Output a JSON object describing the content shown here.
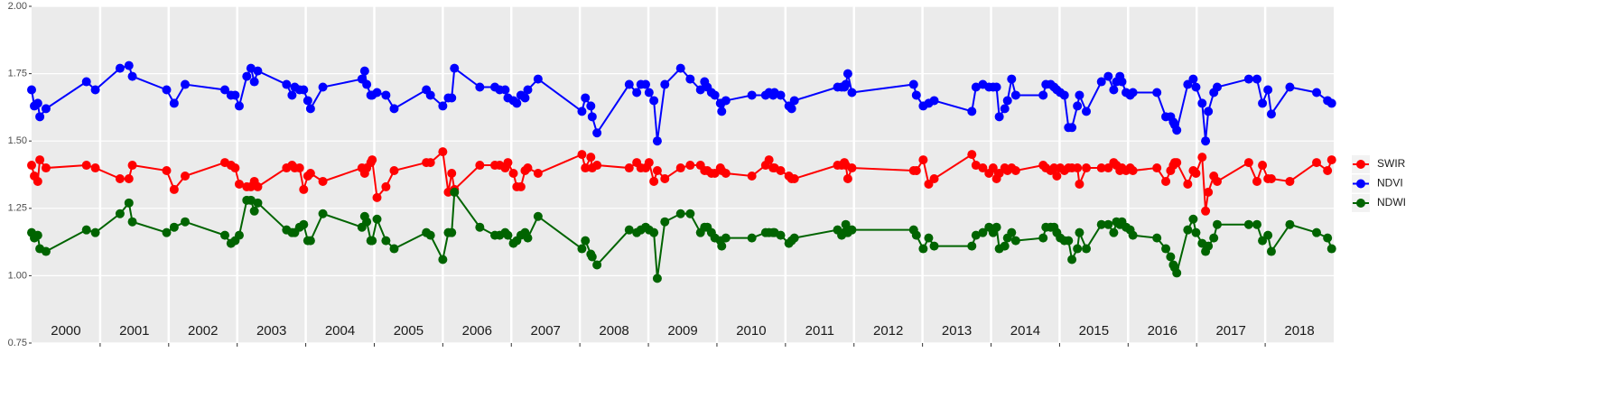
{
  "chart_data": {
    "type": "line",
    "x": [
      2000.0,
      2000.04,
      2000.09,
      2000.12,
      2000.21,
      2000.8,
      2000.93,
      2001.29,
      2001.42,
      2001.47,
      2001.97,
      2002.08,
      2002.24,
      2002.82,
      2002.91,
      2002.97,
      2003.03,
      2003.14,
      2003.2,
      2003.25,
      2003.3,
      2003.72,
      2003.8,
      2003.84,
      2003.91,
      2003.97,
      2004.03,
      2004.07,
      2004.25,
      2004.82,
      2004.86,
      2004.89,
      2004.95,
      2004.97,
      2005.04,
      2005.17,
      2005.29,
      2005.76,
      2005.82,
      2006.0,
      2006.08,
      2006.13,
      2006.17,
      2006.54,
      2006.76,
      2006.83,
      2006.91,
      2006.95,
      2007.03,
      2007.08,
      2007.14,
      2007.2,
      2007.24,
      2007.39,
      2008.03,
      2008.08,
      2008.16,
      2008.18,
      2008.25,
      2008.72,
      2008.83,
      2008.89,
      2008.96,
      2009.01,
      2009.08,
      2009.13,
      2009.24,
      2009.47,
      2009.61,
      2009.76,
      2009.82,
      2009.86,
      2009.92,
      2009.97,
      2010.05,
      2010.07,
      2010.13,
      2010.51,
      2010.71,
      2010.76,
      2010.82,
      2010.84,
      2010.93,
      2011.05,
      2011.09,
      2011.13,
      2011.76,
      2011.82,
      2011.86,
      2011.88,
      2011.91,
      2011.97,
      2012.87,
      2012.91,
      2013.01,
      2013.09,
      2013.17,
      2013.72,
      2013.78,
      2013.88,
      2013.97,
      2014.03,
      2014.08,
      2014.12,
      2014.2,
      2014.24,
      2014.3,
      2014.36,
      2014.76,
      2014.8,
      2014.87,
      2014.92,
      2014.96,
      2015.01,
      2015.07,
      2015.13,
      2015.18,
      2015.26,
      2015.29,
      2015.39,
      2015.61,
      2015.71,
      2015.79,
      2015.83,
      2015.88,
      2015.91,
      2015.97,
      2016.03,
      2016.07,
      2016.42,
      2016.55,
      2016.62,
      2016.66,
      2016.68,
      2016.71,
      2016.87,
      2016.95,
      2016.99,
      2017.08,
      2017.13,
      2017.17,
      2017.25,
      2017.3,
      2017.76,
      2017.88,
      2017.96,
      2018.04,
      2018.09,
      2018.36,
      2018.75,
      2018.91,
      2018.97
    ],
    "series": [
      {
        "name": "SWIR",
        "color": "#ff0000",
        "values": [
          1.41,
          1.37,
          1.35,
          1.43,
          1.4,
          1.41,
          1.4,
          1.36,
          1.36,
          1.41,
          1.39,
          1.32,
          1.37,
          1.42,
          1.41,
          1.4,
          1.34,
          1.33,
          1.33,
          1.35,
          1.33,
          1.4,
          1.41,
          1.4,
          1.4,
          1.32,
          1.37,
          1.38,
          1.35,
          1.4,
          1.38,
          1.4,
          1.42,
          1.43,
          1.29,
          1.33,
          1.39,
          1.42,
          1.42,
          1.46,
          1.31,
          1.38,
          1.32,
          1.41,
          1.41,
          1.41,
          1.4,
          1.42,
          1.38,
          1.33,
          1.33,
          1.39,
          1.4,
          1.38,
          1.45,
          1.4,
          1.44,
          1.4,
          1.41,
          1.4,
          1.42,
          1.4,
          1.4,
          1.42,
          1.35,
          1.39,
          1.36,
          1.4,
          1.41,
          1.41,
          1.39,
          1.39,
          1.38,
          1.38,
          1.4,
          1.39,
          1.38,
          1.37,
          1.41,
          1.43,
          1.4,
          1.4,
          1.39,
          1.37,
          1.36,
          1.36,
          1.41,
          1.41,
          1.42,
          1.41,
          1.36,
          1.4,
          1.39,
          1.39,
          1.43,
          1.34,
          1.36,
          1.45,
          1.41,
          1.4,
          1.38,
          1.4,
          1.36,
          1.38,
          1.4,
          1.39,
          1.4,
          1.39,
          1.41,
          1.4,
          1.39,
          1.4,
          1.37,
          1.4,
          1.39,
          1.4,
          1.4,
          1.4,
          1.34,
          1.4,
          1.4,
          1.4,
          1.42,
          1.41,
          1.39,
          1.4,
          1.39,
          1.4,
          1.39,
          1.4,
          1.35,
          1.39,
          1.41,
          1.42,
          1.42,
          1.34,
          1.39,
          1.38,
          1.44,
          1.24,
          1.31,
          1.37,
          1.35,
          1.42,
          1.35,
          1.41,
          1.36,
          1.36,
          1.35,
          1.42,
          1.39,
          1.43
        ]
      },
      {
        "name": "NDVI",
        "color": "#0000ff",
        "values": [
          1.69,
          1.63,
          1.64,
          1.59,
          1.62,
          1.72,
          1.69,
          1.77,
          1.78,
          1.74,
          1.69,
          1.64,
          1.71,
          1.69,
          1.67,
          1.67,
          1.63,
          1.74,
          1.77,
          1.72,
          1.76,
          1.71,
          1.67,
          1.7,
          1.69,
          1.69,
          1.65,
          1.62,
          1.7,
          1.73,
          1.76,
          1.71,
          1.67,
          1.67,
          1.68,
          1.67,
          1.62,
          1.69,
          1.67,
          1.63,
          1.66,
          1.66,
          1.77,
          1.7,
          1.7,
          1.69,
          1.69,
          1.66,
          1.65,
          1.64,
          1.67,
          1.66,
          1.69,
          1.73,
          1.61,
          1.66,
          1.63,
          1.59,
          1.53,
          1.71,
          1.68,
          1.71,
          1.71,
          1.68,
          1.65,
          1.5,
          1.71,
          1.77,
          1.73,
          1.69,
          1.72,
          1.7,
          1.68,
          1.67,
          1.64,
          1.61,
          1.65,
          1.67,
          1.67,
          1.68,
          1.67,
          1.68,
          1.67,
          1.63,
          1.62,
          1.65,
          1.7,
          1.7,
          1.7,
          1.71,
          1.75,
          1.68,
          1.71,
          1.67,
          1.63,
          1.64,
          1.65,
          1.61,
          1.7,
          1.71,
          1.7,
          1.7,
          1.7,
          1.59,
          1.62,
          1.65,
          1.73,
          1.67,
          1.67,
          1.71,
          1.71,
          1.7,
          1.69,
          1.68,
          1.67,
          1.55,
          1.55,
          1.63,
          1.67,
          1.61,
          1.72,
          1.74,
          1.69,
          1.72,
          1.74,
          1.72,
          1.68,
          1.67,
          1.68,
          1.68,
          1.59,
          1.59,
          1.57,
          1.56,
          1.54,
          1.71,
          1.73,
          1.7,
          1.64,
          1.5,
          1.61,
          1.68,
          1.7,
          1.73,
          1.73,
          1.64,
          1.69,
          1.6,
          1.7,
          1.68,
          1.65,
          1.64
        ]
      },
      {
        "name": "NDWI",
        "color": "#006400",
        "values": [
          1.16,
          1.14,
          1.15,
          1.1,
          1.09,
          1.17,
          1.16,
          1.23,
          1.27,
          1.2,
          1.16,
          1.18,
          1.2,
          1.15,
          1.12,
          1.13,
          1.15,
          1.28,
          1.28,
          1.24,
          1.27,
          1.17,
          1.16,
          1.16,
          1.18,
          1.19,
          1.13,
          1.13,
          1.23,
          1.18,
          1.22,
          1.2,
          1.13,
          1.13,
          1.21,
          1.13,
          1.1,
          1.16,
          1.15,
          1.06,
          1.16,
          1.16,
          1.31,
          1.18,
          1.15,
          1.15,
          1.16,
          1.15,
          1.12,
          1.13,
          1.15,
          1.16,
          1.14,
          1.22,
          1.1,
          1.13,
          1.08,
          1.07,
          1.04,
          1.17,
          1.16,
          1.17,
          1.18,
          1.17,
          1.16,
          0.99,
          1.2,
          1.23,
          1.23,
          1.16,
          1.18,
          1.18,
          1.16,
          1.14,
          1.13,
          1.11,
          1.14,
          1.14,
          1.16,
          1.16,
          1.16,
          1.16,
          1.15,
          1.12,
          1.13,
          1.14,
          1.17,
          1.15,
          1.16,
          1.19,
          1.16,
          1.17,
          1.17,
          1.15,
          1.1,
          1.14,
          1.11,
          1.11,
          1.15,
          1.16,
          1.18,
          1.16,
          1.18,
          1.1,
          1.11,
          1.14,
          1.16,
          1.13,
          1.14,
          1.18,
          1.18,
          1.18,
          1.16,
          1.14,
          1.13,
          1.13,
          1.06,
          1.1,
          1.16,
          1.1,
          1.19,
          1.19,
          1.16,
          1.2,
          1.19,
          1.2,
          1.18,
          1.17,
          1.15,
          1.14,
          1.1,
          1.07,
          1.04,
          1.03,
          1.01,
          1.17,
          1.21,
          1.16,
          1.12,
          1.09,
          1.11,
          1.14,
          1.19,
          1.19,
          1.19,
          1.13,
          1.15,
          1.09,
          1.19,
          1.16,
          1.14,
          1.1
        ]
      }
    ],
    "xlim": [
      2000,
      2019
    ],
    "year_separators": [
      2001,
      2002,
      2003,
      2004,
      2005,
      2006,
      2007,
      2008,
      2009,
      2010,
      2011,
      2012,
      2013,
      2014,
      2015,
      2016,
      2017,
      2018
    ],
    "year_labels": [
      "2000",
      "2001",
      "2002",
      "2003",
      "2004",
      "2005",
      "2006",
      "2007",
      "2008",
      "2009",
      "2010",
      "2011",
      "2012",
      "2013",
      "2014",
      "2015",
      "2016",
      "2017",
      "2018"
    ],
    "ylim": [
      0.75,
      2
    ],
    "yticks": [
      0.75,
      {
        "value": 1,
        "label": "1.00"
      },
      1.25,
      {
        "value": 1.5,
        "label": "1.50"
      },
      1.75,
      {
        "value": 2,
        "label": "2.00"
      }
    ],
    "grid": true,
    "legend": "right"
  }
}
